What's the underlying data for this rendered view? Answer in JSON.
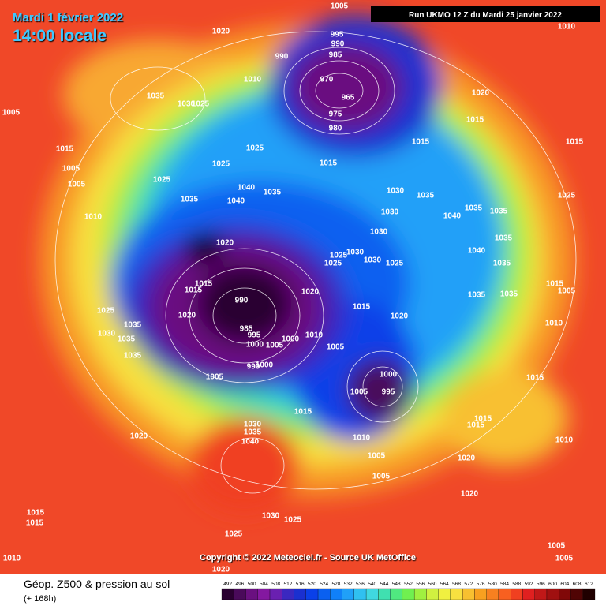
{
  "header": {
    "date": "Mardi 1 février 2022",
    "time": "14:00 locale",
    "run": "Run UKMO 12 Z du Mardi 25 janvier 2022"
  },
  "footer": {
    "copyright": "Copyright © 2022 Meteociel.fr - Source UK MetOffice",
    "title": "Géop. Z500 & pression au sol",
    "subtitle": "(+ 168h)"
  },
  "colorbar": {
    "ticks": [
      492,
      496,
      500,
      504,
      508,
      512,
      516,
      520,
      524,
      528,
      532,
      536,
      540,
      544,
      548,
      552,
      556,
      560,
      564,
      568,
      572,
      576,
      580,
      584,
      588,
      592,
      596,
      600,
      604,
      608,
      612
    ],
    "colors": [
      "#2a0030",
      "#4a0a5a",
      "#6a1080",
      "#8418a0",
      "#6a20b0",
      "#3a28c0",
      "#1a30d0",
      "#0a40e8",
      "#0a60f0",
      "#1080f8",
      "#20a0f8",
      "#30c0f0",
      "#40d8e0",
      "#40e0b0",
      "#50e880",
      "#70f050",
      "#a0f040",
      "#d0f040",
      "#f0f040",
      "#f8e040",
      "#f8c030",
      "#f8a020",
      "#f88020",
      "#f86020",
      "#f04020",
      "#e02020",
      "#c01818",
      "#a01010",
      "#800808",
      "#500404",
      "#200000"
    ]
  },
  "isobars": [
    "1005",
    "1010",
    "1020",
    "995",
    "990",
    "990",
    "985",
    "1010",
    "970",
    "965",
    "1035",
    "1030",
    "1025",
    "1020",
    "975",
    "1015",
    "980",
    "1015",
    "1015",
    "1015",
    "1025",
    "1015",
    "1025",
    "1005",
    "1025",
    "1005",
    "1040",
    "1035",
    "1030",
    "1035",
    "1025",
    "1035",
    "1040",
    "1035",
    "1035",
    "1030",
    "1040",
    "1010",
    "1030",
    "1035",
    "1020",
    "1040",
    "1025",
    "1030",
    "1030",
    "1025",
    "1025",
    "1035",
    "1015",
    "1015",
    "1020",
    "1015",
    "1005",
    "1035",
    "1035",
    "990",
    "1015",
    "1025",
    "1020",
    "1020",
    "1035",
    "1010",
    "1030",
    "985",
    "995",
    "1010",
    "1000",
    "1035",
    "1000",
    "1005",
    "1005",
    "1035",
    "1000",
    "990",
    "1000",
    "1005",
    "1015",
    "1005",
    "995",
    "1015",
    "1015",
    "1015",
    "1020",
    "1030",
    "1035",
    "1040",
    "1010",
    "1010",
    "1005",
    "1020",
    "1005",
    "1020",
    "1015",
    "1030",
    "1025",
    "1015",
    "1025",
    "1010",
    "1005",
    "1005",
    "1020",
    "1005"
  ]
}
